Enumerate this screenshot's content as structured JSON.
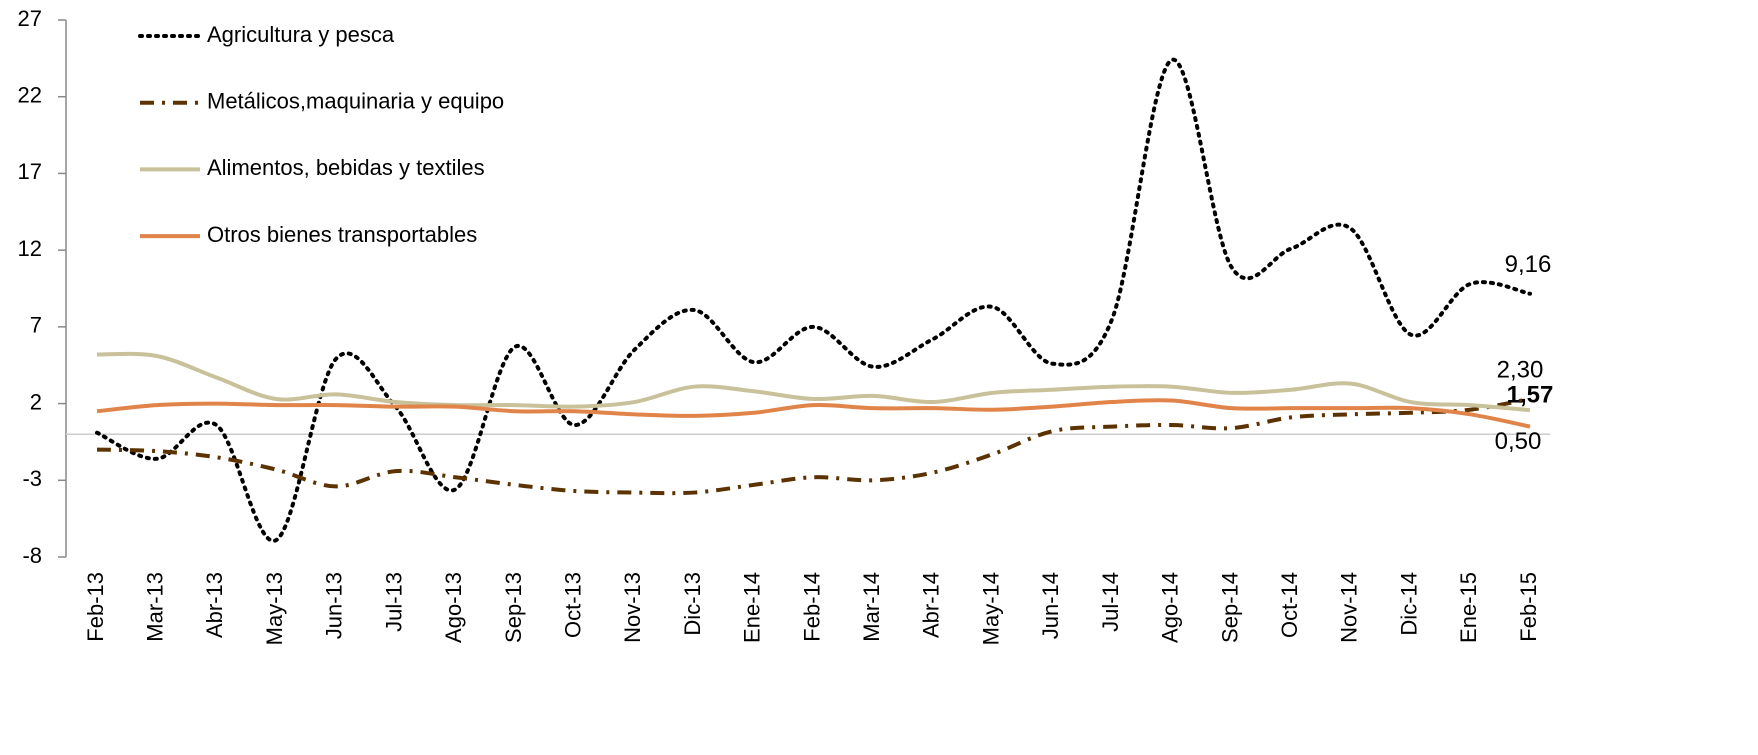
{
  "chart_data": {
    "type": "line",
    "categories": [
      "Feb-13",
      "Mar-13",
      "Abr-13",
      "May-13",
      "Jun-13",
      "Jul-13",
      "Ago-13",
      "Sep-13",
      "Oct-13",
      "Nov-13",
      "Dic-13",
      "Ene-14",
      "Feb-14",
      "Mar-14",
      "Abr-14",
      "May-14",
      "Jun-14",
      "Jul-14",
      "Ago-14",
      "Sep-14",
      "Oct-14",
      "Nov-14",
      "Dic-14",
      "Ene-15",
      "Feb-15"
    ],
    "series": [
      {
        "name": "Agricultura y pesca",
        "color": "#000000",
        "dash": "dotted",
        "label_color": "#000000",
        "values": [
          0.1,
          -1.6,
          0.6,
          -6.9,
          4.9,
          1.8,
          -3.6,
          5.7,
          0.6,
          5.5,
          8.1,
          4.7,
          7.0,
          4.4,
          6.2,
          8.3,
          4.6,
          7.5,
          24.4,
          10.9,
          12.1,
          13.4,
          6.5,
          9.8,
          9.16
        ],
        "value_labels": [
          null,
          null,
          null,
          null,
          null,
          null,
          null,
          null,
          null,
          null,
          null,
          null,
          null,
          null,
          null,
          null,
          null,
          null,
          null,
          null,
          null,
          null,
          null,
          null,
          "9,16"
        ]
      },
      {
        "name": "Metálicos,maquinaria y equipo",
        "color": "#5c3300",
        "dash": "dashdot",
        "label_color": "#5c3300",
        "values": [
          -1.0,
          -1.1,
          -1.5,
          -2.3,
          -3.4,
          -2.4,
          -2.8,
          -3.3,
          -3.7,
          -3.8,
          -3.8,
          -3.3,
          -2.8,
          -3.0,
          -2.5,
          -1.3,
          0.2,
          0.5,
          0.6,
          0.4,
          1.1,
          1.3,
          1.4,
          1.6,
          2.3
        ],
        "value_labels": [
          null,
          null,
          null,
          null,
          null,
          null,
          null,
          null,
          null,
          null,
          null,
          null,
          null,
          null,
          null,
          null,
          null,
          null,
          null,
          null,
          null,
          null,
          null,
          null,
          "2,30"
        ]
      },
      {
        "name": "Alimentos, bebidas y textiles",
        "color": "#c8c19a",
        "dash": "solid",
        "label_color": "#8a9a2a",
        "values": [
          5.2,
          5.1,
          3.7,
          2.3,
          2.6,
          2.1,
          1.9,
          1.9,
          1.8,
          2.1,
          3.1,
          2.8,
          2.3,
          2.5,
          2.1,
          2.7,
          2.9,
          3.1,
          3.1,
          2.7,
          2.9,
          3.3,
          2.1,
          1.9,
          1.57
        ],
        "value_labels": [
          null,
          null,
          null,
          null,
          null,
          null,
          null,
          null,
          null,
          null,
          null,
          null,
          null,
          null,
          null,
          null,
          null,
          null,
          null,
          null,
          null,
          null,
          null,
          null,
          "1,57"
        ]
      },
      {
        "name": "Otros bienes transportables",
        "color": "#e0844a",
        "dash": "solid",
        "label_color": "#eaa070",
        "values": [
          1.5,
          1.9,
          2.0,
          1.9,
          1.9,
          1.8,
          1.8,
          1.5,
          1.5,
          1.3,
          1.2,
          1.4,
          1.9,
          1.7,
          1.7,
          1.6,
          1.8,
          2.1,
          2.2,
          1.7,
          1.7,
          1.7,
          1.7,
          1.3,
          0.5
        ],
        "value_labels": [
          null,
          null,
          null,
          null,
          null,
          null,
          null,
          null,
          null,
          null,
          null,
          null,
          null,
          null,
          null,
          null,
          null,
          null,
          null,
          null,
          null,
          null,
          null,
          null,
          "0,50"
        ]
      }
    ],
    "ylim": [
      -8,
      27
    ],
    "yticks": [
      -8,
      -3,
      2,
      7,
      12,
      17,
      22,
      27
    ],
    "legend": "top-left",
    "grid": false
  }
}
